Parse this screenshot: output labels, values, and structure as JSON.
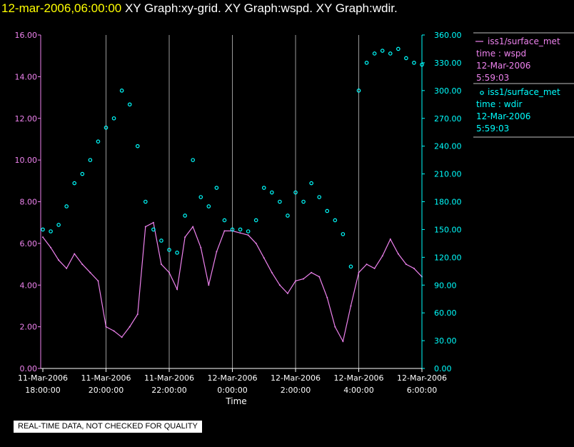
{
  "header": {
    "time": "12-mar-2006,06:00:00",
    "graphs": " XY Graph:xy-grid.  XY Graph:wspd.  XY Graph:wdir."
  },
  "notice": "REAL-TIME DATA, NOT CHECKED FOR QUALITY",
  "colors": {
    "wspd": "#ee82ee",
    "wdir": "#00ffff",
    "axis": "#ffffff",
    "grid": "#c0c0c0"
  },
  "chart_data": {
    "type": "scatter",
    "xlabel": "Time",
    "x_ticks": [
      {
        "l1": "11-Mar-2006",
        "l2": "18:00:00",
        "h": 0
      },
      {
        "l1": "11-Mar-2006",
        "l2": "20:00:00",
        "h": 2
      },
      {
        "l1": "11-Mar-2006",
        "l2": "22:00:00",
        "h": 4
      },
      {
        "l1": "12-Mar-2006",
        "l2": "0:00:00",
        "h": 6
      },
      {
        "l1": "12-Mar-2006",
        "l2": "2:00:00",
        "h": 8
      },
      {
        "l1": "12-Mar-2006",
        "l2": "4:00:00",
        "h": 10
      },
      {
        "l1": "12-Mar-2006",
        "l2": "6:00:00",
        "h": 12
      }
    ],
    "grid_hours": [
      2,
      4,
      6,
      8,
      10
    ],
    "y_left_ticks": [
      "0.00",
      "2.00",
      "4.00",
      "6.00",
      "8.00",
      "10.00",
      "12.00",
      "14.00",
      "16.00"
    ],
    "y_right_ticks": [
      "0.00",
      "30.00",
      "60.00",
      "90.00",
      "120.00",
      "150.00",
      "180.00",
      "210.00",
      "240.00",
      "270.00",
      "300.00",
      "330.00",
      "360.00"
    ],
    "ylim_left": [
      0,
      16
    ],
    "ylim_right": [
      0,
      360
    ],
    "xlim_hours": [
      0,
      12
    ],
    "legend": [
      {
        "series": "wspd",
        "marker": "line",
        "name": "iss1/surface_met",
        "lines": [
          "time : wspd",
          "12-Mar-2006",
          "5:59:03"
        ]
      },
      {
        "series": "wdir",
        "marker": "circle",
        "name": "iss1/surface_met",
        "lines": [
          "time : wdir",
          "12-Mar-2006",
          "5:59:03"
        ]
      }
    ],
    "series": [
      {
        "key": "wspd",
        "kind": "line",
        "x_hours": [
          0,
          0.25,
          0.5,
          0.75,
          1,
          1.25,
          1.5,
          1.75,
          2,
          2.25,
          2.5,
          2.75,
          3,
          3.25,
          3.5,
          3.75,
          4,
          4.25,
          4.5,
          4.75,
          5,
          5.25,
          5.5,
          5.75,
          6,
          6.25,
          6.5,
          6.75,
          7,
          7.25,
          7.5,
          7.75,
          8,
          8.25,
          8.5,
          8.75,
          9,
          9.25,
          9.5,
          9.75,
          10,
          10.25,
          10.5,
          10.75,
          11,
          11.25,
          11.5,
          11.75,
          12
        ],
        "values": [
          6.3,
          5.8,
          5.2,
          4.8,
          5.5,
          5.0,
          4.6,
          4.2,
          2.0,
          1.8,
          1.5,
          2.0,
          2.6,
          6.8,
          7.0,
          5.0,
          4.6,
          3.8,
          6.3,
          6.8,
          5.8,
          4.0,
          5.6,
          6.6,
          6.6,
          6.5,
          6.4,
          6.0,
          5.3,
          4.6,
          4.0,
          3.6,
          4.2,
          4.3,
          4.6,
          4.4,
          3.4,
          2.0,
          1.3,
          3.0,
          4.6,
          5.0,
          4.8,
          5.4,
          6.2,
          5.5,
          5.0,
          4.8,
          4.4
        ]
      },
      {
        "key": "wdir",
        "kind": "scatter",
        "x_hours": [
          0,
          0.25,
          0.5,
          0.75,
          1,
          1.25,
          1.5,
          1.75,
          2,
          2.25,
          2.5,
          2.75,
          3,
          3.25,
          3.5,
          3.75,
          4,
          4.25,
          4.5,
          4.75,
          5,
          5.25,
          5.5,
          5.75,
          6,
          6.25,
          6.5,
          6.75,
          7,
          7.25,
          7.5,
          7.75,
          8,
          8.25,
          8.5,
          8.75,
          9,
          9.25,
          9.5,
          9.75,
          10,
          10.25,
          10.5,
          10.75,
          11,
          11.25,
          11.5,
          11.75,
          12
        ],
        "values": [
          150,
          148,
          155,
          175,
          200,
          210,
          225,
          245,
          260,
          270,
          300,
          285,
          240,
          180,
          150,
          138,
          128,
          125,
          165,
          225,
          185,
          175,
          195,
          160,
          150,
          150,
          148,
          160,
          195,
          190,
          180,
          165,
          190,
          180,
          200,
          185,
          170,
          160,
          145,
          110,
          300,
          330,
          340,
          343,
          340,
          345,
          335,
          330,
          328
        ]
      }
    ]
  }
}
